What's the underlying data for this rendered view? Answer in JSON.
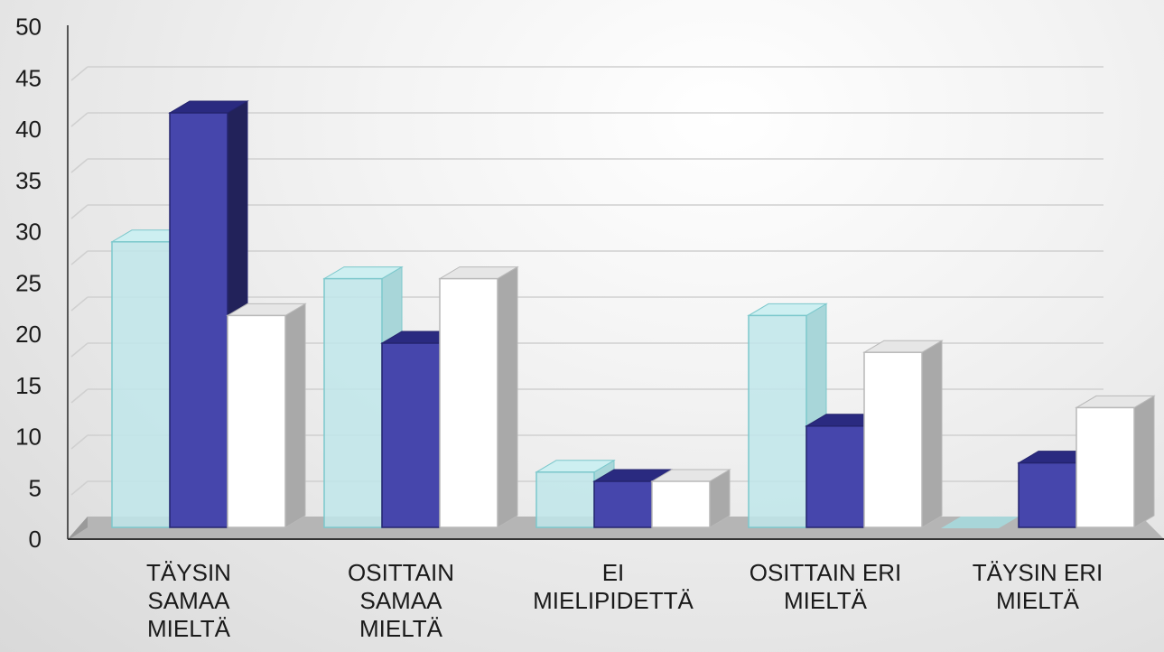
{
  "chart_data": {
    "type": "bar",
    "style": "3d-clustered-column",
    "categories": [
      [
        "TÄYSIN",
        "SAMAA",
        "MIELTÄ"
      ],
      [
        "OSITTAIN",
        "SAMAA",
        "MIELTÄ"
      ],
      [
        "EI",
        "MIELIPIDETTÄ"
      ],
      [
        "OSITTAIN ERI",
        "MIELTÄ"
      ],
      [
        "TÄYSIN ERI",
        "MIELTÄ"
      ]
    ],
    "series": [
      {
        "values": [
          31,
          27,
          6,
          23,
          0
        ]
      },
      {
        "values": [
          45,
          20,
          5,
          11,
          7
        ]
      },
      {
        "values": [
          23,
          27,
          5,
          19,
          13
        ]
      }
    ],
    "colors": [
      "#bfe9ec",
      "#3c3ca6",
      "#ffffff"
    ],
    "ylim": [
      0,
      50
    ],
    "yticks": [
      "0",
      "5",
      "10",
      "15",
      "20",
      "25",
      "30",
      "35",
      "40",
      "45",
      "50"
    ],
    "grid": true,
    "legend": "none"
  }
}
